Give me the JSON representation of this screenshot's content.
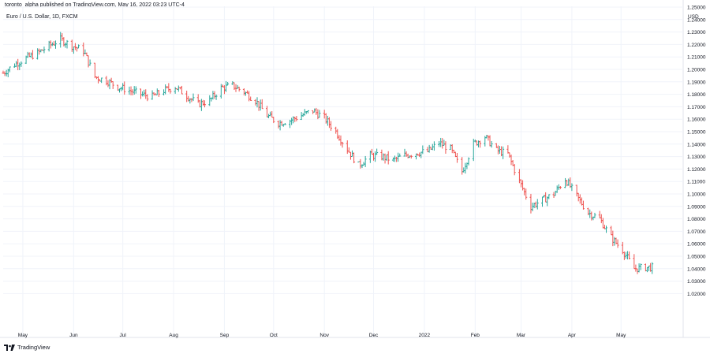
{
  "header": {
    "attribution": "toronto_alpha published on TradingView.com, May 16, 2022 03:23 UTC-4"
  },
  "footer": {
    "brand": "TradingView",
    "logo_icon": "tradingview-logo-icon"
  },
  "colors": {
    "up": "#26a69a",
    "down": "#ef5350",
    "grid": "#f0f3fa",
    "axis_text": "#131722",
    "border": "#e0e3eb"
  },
  "chart_data": {
    "type": "ohlc-bar",
    "title": "Euro / U.S. Dollar, 1D, FXCM",
    "y_unit": "USD",
    "x_axis_labels": [
      "May",
      "Jun",
      "Jul",
      "Aug",
      "Sep",
      "Oct",
      "Nov",
      "Dec",
      "2022",
      "Feb",
      "Mar",
      "Apr",
      "May"
    ],
    "y_axis_labels": [
      "1.25000",
      "1.24000",
      "1.23000",
      "1.22000",
      "1.21000",
      "1.20000",
      "1.19000",
      "1.18000",
      "1.17000",
      "1.16000",
      "1.15000",
      "1.14000",
      "1.13000",
      "1.12000",
      "1.11000",
      "1.10000",
      "1.09000",
      "1.08000",
      "1.07000",
      "1.06000",
      "1.05000",
      "1.04000",
      "1.03000",
      "1.02000"
    ],
    "ylim": [
      1.015,
      1.255
    ],
    "x_range": [
      "2021-04-19",
      "2022-05-24"
    ],
    "grid": true,
    "closes": [
      {
        "date": "2021-04-19",
        "close": 1.197
      },
      {
        "date": "2021-04-26",
        "close": 1.204
      },
      {
        "date": "2021-05-03",
        "close": 1.209
      },
      {
        "date": "2021-05-10",
        "close": 1.213
      },
      {
        "date": "2021-05-17",
        "close": 1.219
      },
      {
        "date": "2021-05-24",
        "close": 1.224
      },
      {
        "date": "2021-05-31",
        "close": 1.219
      },
      {
        "date": "2021-06-07",
        "close": 1.215
      },
      {
        "date": "2021-06-14",
        "close": 1.194
      },
      {
        "date": "2021-06-21",
        "close": 1.191
      },
      {
        "date": "2021-06-28",
        "close": 1.186
      },
      {
        "date": "2021-07-05",
        "close": 1.183
      },
      {
        "date": "2021-07-12",
        "close": 1.18
      },
      {
        "date": "2021-07-19",
        "close": 1.178
      },
      {
        "date": "2021-07-26",
        "close": 1.183
      },
      {
        "date": "2021-08-02",
        "close": 1.186
      },
      {
        "date": "2021-08-09",
        "close": 1.179
      },
      {
        "date": "2021-08-16",
        "close": 1.172
      },
      {
        "date": "2021-08-23",
        "close": 1.175
      },
      {
        "date": "2021-08-30",
        "close": 1.185
      },
      {
        "date": "2021-09-06",
        "close": 1.187
      },
      {
        "date": "2021-09-13",
        "close": 1.182
      },
      {
        "date": "2021-09-20",
        "close": 1.175
      },
      {
        "date": "2021-09-27",
        "close": 1.163
      },
      {
        "date": "2021-10-04",
        "close": 1.157
      },
      {
        "date": "2021-10-11",
        "close": 1.159
      },
      {
        "date": "2021-10-18",
        "close": 1.163
      },
      {
        "date": "2021-10-25",
        "close": 1.167
      },
      {
        "date": "2021-11-01",
        "close": 1.161
      },
      {
        "date": "2021-11-08",
        "close": 1.15
      },
      {
        "date": "2021-11-15",
        "close": 1.136
      },
      {
        "date": "2021-11-22",
        "close": 1.123
      },
      {
        "date": "2021-11-29",
        "close": 1.131
      },
      {
        "date": "2021-12-06",
        "close": 1.13
      },
      {
        "date": "2021-12-13",
        "close": 1.127
      },
      {
        "date": "2021-12-20",
        "close": 1.131
      },
      {
        "date": "2021-12-27",
        "close": 1.133
      },
      {
        "date": "2022-01-03",
        "close": 1.134
      },
      {
        "date": "2022-01-10",
        "close": 1.141
      },
      {
        "date": "2022-01-17",
        "close": 1.136
      },
      {
        "date": "2022-01-24",
        "close": 1.118
      },
      {
        "date": "2022-01-31",
        "close": 1.14
      },
      {
        "date": "2022-02-07",
        "close": 1.146
      },
      {
        "date": "2022-02-14",
        "close": 1.135
      },
      {
        "date": "2022-02-21",
        "close": 1.132
      },
      {
        "date": "2022-02-28",
        "close": 1.11
      },
      {
        "date": "2022-03-07",
        "close": 1.09
      },
      {
        "date": "2022-03-14",
        "close": 1.095
      },
      {
        "date": "2022-03-21",
        "close": 1.1
      },
      {
        "date": "2022-03-28",
        "close": 1.112
      },
      {
        "date": "2022-04-04",
        "close": 1.098
      },
      {
        "date": "2022-04-11",
        "close": 1.085
      },
      {
        "date": "2022-04-18",
        "close": 1.08
      },
      {
        "date": "2022-04-25",
        "close": 1.065
      },
      {
        "date": "2022-05-02",
        "close": 1.055
      },
      {
        "date": "2022-05-09",
        "close": 1.04
      },
      {
        "date": "2022-05-16",
        "close": 1.041
      }
    ]
  }
}
